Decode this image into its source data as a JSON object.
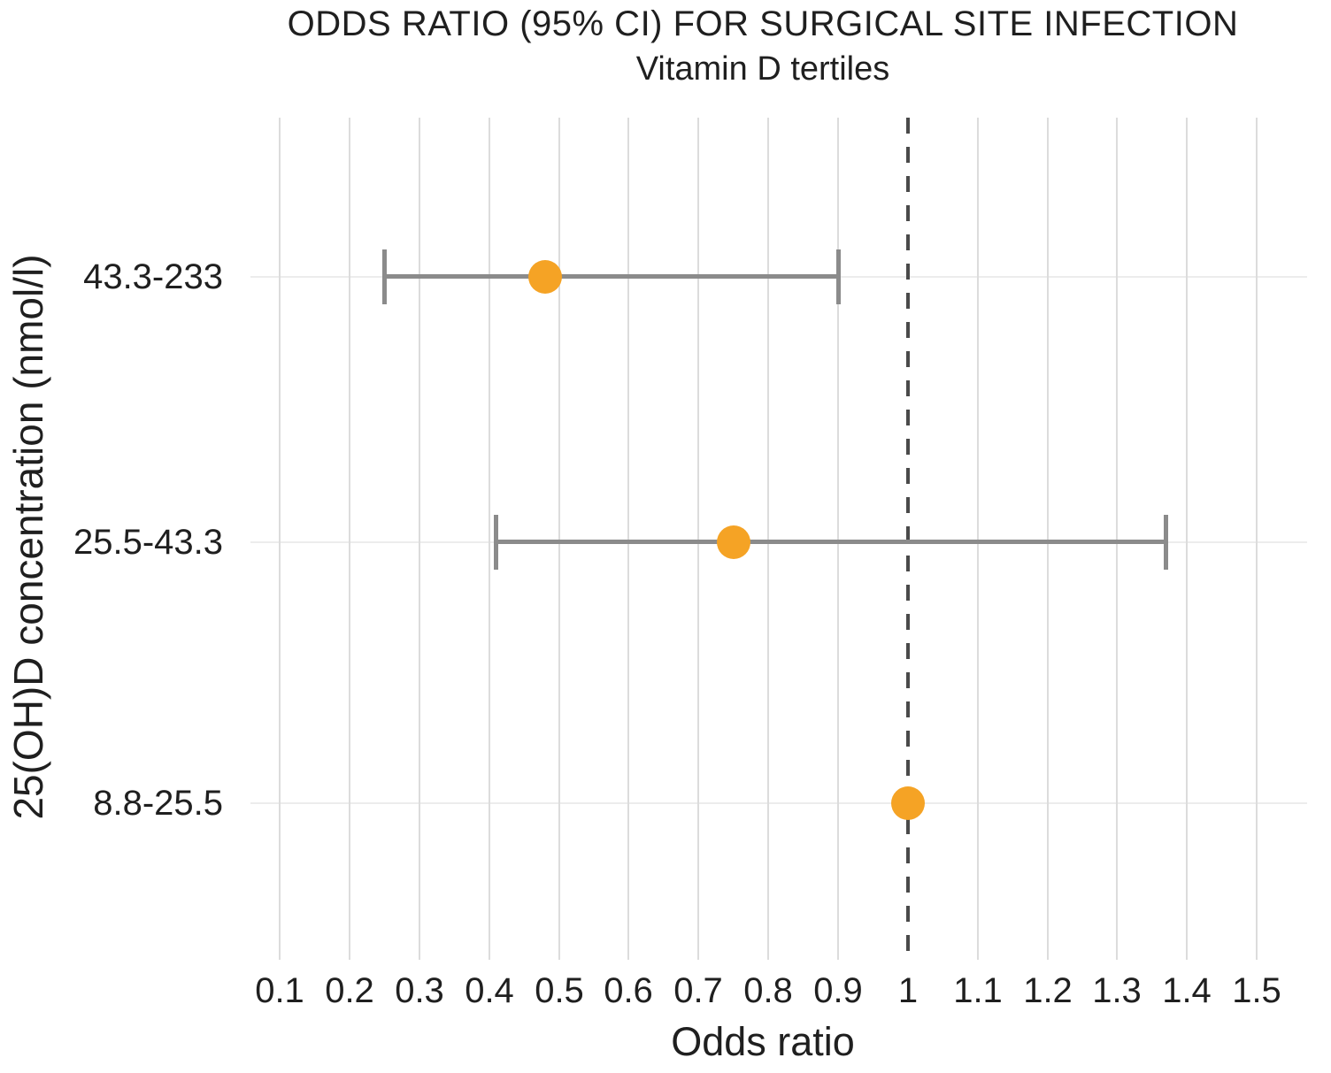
{
  "chart_data": {
    "type": "scatter",
    "variant": "forest-plot",
    "title": "ODDS RATIO (95% CI) FOR SURGICAL SITE INFECTION",
    "subtitle": "Vitamin D tertiles",
    "xlabel": "Odds ratio",
    "ylabel": "25(OH)D concentration (nmol/l)",
    "categories": [
      "43.3-233",
      "25.5-43.3",
      "8.8-25.5"
    ],
    "x_ticks": [
      {
        "value": 0.1,
        "label": "0.1"
      },
      {
        "value": 0.2,
        "label": "0.2"
      },
      {
        "value": 0.3,
        "label": "0.3"
      },
      {
        "value": 0.4,
        "label": "0.4"
      },
      {
        "value": 0.5,
        "label": "0.5"
      },
      {
        "value": 0.6,
        "label": "0.6"
      },
      {
        "value": 0.7,
        "label": "0.7"
      },
      {
        "value": 0.8,
        "label": "0.8"
      },
      {
        "value": 0.9,
        "label": "0.9"
      },
      {
        "value": 1.0,
        "label": "1"
      },
      {
        "value": 1.1,
        "label": "1.1"
      },
      {
        "value": 1.2,
        "label": "1.2"
      },
      {
        "value": 1.3,
        "label": "1.3"
      },
      {
        "value": 1.4,
        "label": "1.4"
      },
      {
        "value": 1.5,
        "label": "1.5"
      }
    ],
    "xlim": [
      0.058,
      1.572
    ],
    "grid": true,
    "legend": false,
    "reference_line_x": 1.0,
    "series": [
      {
        "name": "Odds ratio (95% CI)",
        "points": [
          {
            "category": "43.3-233",
            "or": 0.48,
            "ci_low": 0.25,
            "ci_high": 0.9
          },
          {
            "category": "25.5-43.3",
            "or": 0.75,
            "ci_low": 0.41,
            "ci_high": 1.37
          },
          {
            "category": "8.8-25.5",
            "or": 1.0,
            "ci_low": null,
            "ci_high": null
          }
        ]
      }
    ],
    "colors": {
      "point": "#F5A325",
      "error_bar": "#8B8B8B",
      "reference_line": "#4A4A4A",
      "gridline_vertical": "#DCDCDC",
      "gridline_horizontal": "#ECECEC",
      "text": "#1F1F1F",
      "background": "#FFFFFF"
    }
  }
}
